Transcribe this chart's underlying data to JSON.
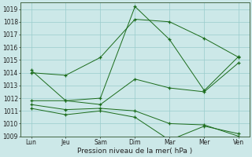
{
  "xlabel": "Pression niveau de la mer( hPa )",
  "background_color": "#cce8e8",
  "grid_color": "#99cccc",
  "line_color": "#1a6b1a",
  "ylim": [
    1009,
    1019.5
  ],
  "yticks": [
    1009,
    1010,
    1011,
    1012,
    1013,
    1014,
    1015,
    1016,
    1017,
    1018,
    1019
  ],
  "x_labels": [
    "Lun",
    "Jeu",
    "Sam",
    "Dim",
    "Mar",
    "Mer",
    "Ven"
  ],
  "x_positions": [
    0,
    1,
    2,
    3,
    4,
    5,
    6
  ],
  "lines": [
    [
      1014.0,
      1013.8,
      1015.2,
      1018.2,
      1018.0,
      1016.7,
      1015.2
    ],
    [
      1014.2,
      1011.8,
      1012.0,
      1019.2,
      1016.6,
      1012.6,
      1015.3
    ],
    [
      1011.8,
      1011.8,
      1011.5,
      1013.5,
      1012.8,
      1012.5,
      1014.8
    ],
    [
      1011.5,
      1011.1,
      1011.2,
      1011.0,
      1010.0,
      1009.9,
      1009.0
    ],
    [
      1011.2,
      1010.7,
      1011.0,
      1010.5,
      1008.7,
      1009.8,
      1009.2
    ]
  ],
  "figsize": [
    3.2,
    2.0
  ],
  "dpi": 100
}
